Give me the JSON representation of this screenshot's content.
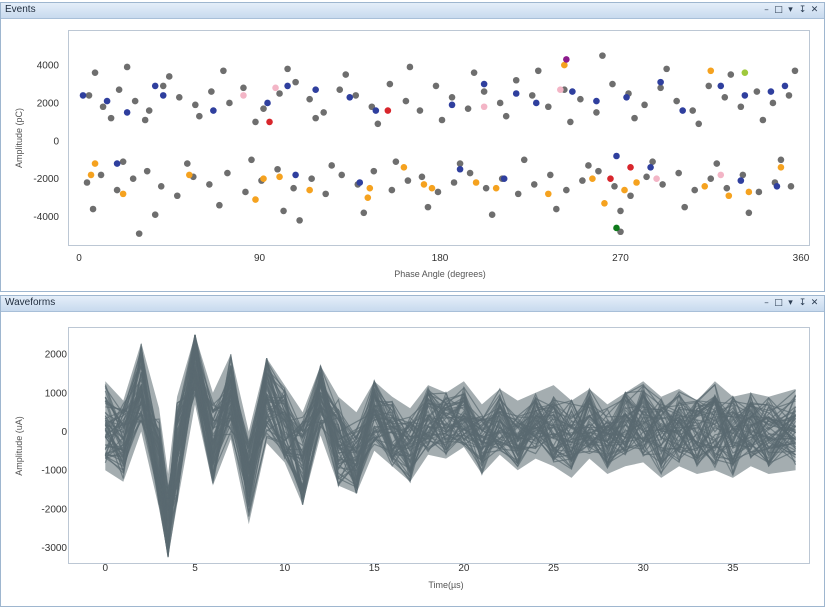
{
  "panels": {
    "events": {
      "title": "Events",
      "controls": [
        "–",
        "□",
        "▾",
        "↧",
        "✕"
      ]
    },
    "waveforms": {
      "title": "Waveforms",
      "controls": [
        "–",
        "□",
        "▾",
        "↧",
        "✕"
      ]
    }
  },
  "chart_data": [
    {
      "type": "scatter",
      "xlabel": "Phase Angle (degrees)",
      "ylabel": "Amplitude (pC)",
      "xlim": [
        0,
        360
      ],
      "ylim": [
        -5500,
        5800
      ],
      "xticks": [
        "0",
        "90",
        "180",
        "270",
        "360"
      ],
      "xtick_values": [
        0,
        90,
        180,
        270,
        360
      ],
      "yticks": [
        "4000",
        "2000",
        "0",
        "-2000",
        "-4000"
      ],
      "ytick_values": [
        4000,
        2000,
        0,
        -2000,
        -4000
      ],
      "grid": false,
      "colors": {
        "default": "#6e6e6e",
        "blue": "#2f3f9e",
        "orange": "#f5a21f",
        "pink": "#f3b5c6",
        "red": "#d8262c",
        "purple": "#8c1a8c",
        "green": "#0e7a1a",
        "lime": "#9fc93c"
      },
      "series": [
        {
          "color": "#6e6e6e",
          "x": [
            5,
            12,
            20,
            28,
            35,
            42,
            50,
            58,
            66,
            75,
            82,
            92,
            100,
            108,
            115,
            122,
            130,
            138,
            146,
            155,
            163,
            170,
            178,
            186,
            194,
            202,
            210,
            218,
            226,
            234,
            242,
            250,
            258,
            266,
            274,
            282,
            290,
            298,
            306,
            314,
            322,
            330,
            338,
            346,
            354,
            8,
            16,
            24,
            33,
            45,
            60,
            72,
            88,
            104,
            118,
            133,
            149,
            165,
            181,
            197,
            213,
            229,
            245,
            261,
            277,
            293,
            309,
            325,
            341,
            357
          ],
          "y": [
            2400,
            1800,
            2700,
            2100,
            1600,
            2900,
            2300,
            1900,
            2600,
            2000,
            2800,
            1700,
            2500,
            3100,
            2200,
            1500,
            2700,
            2400,
            1800,
            3000,
            2100,
            1600,
            2900,
            2300,
            1700,
            2600,
            2000,
            3200,
            2400,
            1800,
            2700,
            2200,
            1500,
            3000,
            2500,
            1900,
            2800,
            2100,
            1600,
            2900,
            2300,
            1800,
            2600,
            2000,
            2400,
            3600,
            1200,
            3900,
            1100,
            3400,
            1300,
            3700,
            1000,
            3800,
            1200,
            3500,
            900,
            3900,
            1100,
            3600,
            1300,
            3700,
            1000,
            4500,
            1200,
            3800,
            900,
            3500,
            1100,
            3700
          ]
        },
        {
          "color": "#6e6e6e",
          "x": [
            4,
            11,
            19,
            27,
            34,
            41,
            49,
            57,
            65,
            74,
            83,
            91,
            99,
            107,
            116,
            123,
            131,
            139,
            147,
            156,
            164,
            171,
            179,
            187,
            195,
            203,
            211,
            219,
            227,
            235,
            243,
            251,
            259,
            267,
            275,
            283,
            291,
            299,
            307,
            315,
            323,
            331,
            339,
            347,
            355,
            7,
            22,
            38,
            54,
            70,
            86,
            102,
            126,
            142,
            158,
            174,
            190,
            206,
            222,
            238,
            254,
            270,
            286,
            302,
            318,
            334,
            350,
            30,
            110,
            270
          ],
          "y": [
            -2200,
            -1800,
            -2600,
            -2000,
            -1600,
            -2400,
            -2900,
            -1900,
            -2300,
            -1700,
            -2700,
            -2100,
            -1500,
            -2500,
            -2000,
            -2800,
            -1800,
            -2300,
            -1600,
            -2600,
            -2100,
            -1900,
            -2700,
            -2200,
            -1700,
            -2500,
            -2000,
            -2800,
            -2300,
            -1800,
            -2600,
            -2100,
            -1600,
            -2400,
            -2900,
            -1900,
            -2300,
            -1700,
            -2600,
            -2000,
            -2500,
            -1800,
            -2700,
            -2200,
            -2400,
            -3600,
            -1100,
            -3900,
            -1200,
            -3400,
            -1000,
            -3700,
            -1300,
            -3800,
            -1100,
            -3500,
            -1200,
            -3900,
            -1000,
            -3600,
            -1300,
            -3700,
            -1100,
            -3500,
            -1200,
            -3800,
            -1000,
            -4900,
            -4200,
            -4800
          ]
        },
        {
          "color": "#2f3f9e",
          "x": [
            2,
            14,
            24,
            38,
            42,
            67,
            94,
            104,
            118,
            135,
            148,
            186,
            202,
            218,
            228,
            246,
            258,
            273,
            290,
            301,
            320,
            332,
            345,
            352,
            19,
            108,
            140,
            190,
            212,
            268,
            285,
            330,
            348
          ],
          "y": [
            2400,
            2100,
            1500,
            2900,
            2400,
            1600,
            2000,
            2900,
            2700,
            2300,
            1600,
            1900,
            3000,
            2500,
            2000,
            2600,
            2100,
            2300,
            3100,
            1600,
            2900,
            2400,
            2600,
            2900,
            -1200,
            -1800,
            -2200,
            -1500,
            -2000,
            -800,
            -1400,
            -2100,
            -2400
          ]
        },
        {
          "color": "#f5a21f",
          "x": [
            8,
            22,
            55,
            92,
            115,
            145,
            162,
            176,
            198,
            234,
            262,
            278,
            312,
            334,
            350,
            6,
            88,
            100,
            144,
            172,
            208,
            256,
            272,
            324,
            242,
            315
          ],
          "y": [
            -1200,
            -2800,
            -1800,
            -2000,
            -2600,
            -2500,
            -1400,
            -2500,
            -2200,
            -2800,
            -3300,
            -2200,
            -2400,
            -2700,
            -1400,
            -1800,
            -3100,
            -1900,
            -3000,
            -2300,
            -2500,
            -2000,
            -2600,
            -2900,
            4000,
            3700
          ]
        },
        {
          "color": "#f3b5c6",
          "x": [
            82,
            98,
            202,
            240,
            288,
            320
          ],
          "y": [
            2400,
            2800,
            1800,
            2700,
            -2000,
            -1800
          ]
        },
        {
          "color": "#d8262c",
          "x": [
            95,
            154,
            275,
            265
          ],
          "y": [
            1000,
            1600,
            -1400,
            -2000
          ]
        },
        {
          "color": "#8c1a8c",
          "x": [
            243
          ],
          "y": [
            4300
          ]
        },
        {
          "color": "#0e7a1a",
          "x": [
            268
          ],
          "y": [
            -4600
          ]
        },
        {
          "color": "#9fc93c",
          "x": [
            332
          ],
          "y": [
            3600
          ]
        }
      ]
    },
    {
      "type": "line",
      "xlabel": "Time(µs)",
      "ylabel": "Amplitude (uA)",
      "xlim": [
        -0.8,
        38.8
      ],
      "ylim": [
        -3350,
        2600
      ],
      "xticks": [
        "0",
        "5",
        "10",
        "15",
        "20",
        "25",
        "30",
        "35"
      ],
      "xtick_values": [
        0,
        5,
        10,
        15,
        20,
        25,
        30,
        35
      ],
      "yticks": [
        "2000",
        "1000",
        "0",
        "-1000",
        "-2000",
        "-3000"
      ],
      "ytick_values": [
        2000,
        1000,
        0,
        -1000,
        -2000,
        -3000
      ],
      "grid": false,
      "series_color": "#5a6a70",
      "envelope": {
        "x": [
          0,
          1,
          2,
          3,
          3.5,
          4,
          5,
          6,
          7,
          8,
          9,
          10,
          11,
          12,
          13,
          14,
          15,
          16,
          17,
          18,
          19,
          20,
          21,
          22,
          23,
          24,
          25,
          26,
          27,
          28,
          29,
          30,
          31,
          32,
          33,
          34,
          35,
          36,
          37,
          38.5
        ],
        "center": [
          200,
          -200,
          1200,
          -800,
          -2400,
          -600,
          1800,
          -300,
          1000,
          -1200,
          900,
          200,
          -800,
          900,
          -300,
          -700,
          500,
          0,
          -500,
          300,
          200,
          400,
          -300,
          300,
          -200,
          200,
          100,
          -100,
          300,
          -200,
          200,
          300,
          -100,
          200,
          0,
          200,
          -100,
          100,
          0,
          100
        ],
        "upper": [
          1300,
          800,
          2300,
          600,
          -1100,
          900,
          2500,
          1000,
          2000,
          0,
          1900,
          1200,
          500,
          1700,
          900,
          500,
          1300,
          900,
          600,
          1200,
          1000,
          1300,
          700,
          1100,
          800,
          1000,
          1200,
          800,
          1100,
          700,
          1000,
          1300,
          900,
          1100,
          800,
          1300,
          900,
          1000,
          900,
          1100
        ],
        "lower": [
          -1000,
          -1300,
          0,
          -2000,
          -3250,
          -1900,
          700,
          -1400,
          -200,
          -2400,
          -300,
          -800,
          -1900,
          -100,
          -1400,
          -1600,
          -500,
          -900,
          -1300,
          -600,
          -700,
          -400,
          -1100,
          -600,
          -1000,
          -700,
          -900,
          -1200,
          -700,
          -1100,
          -900,
          -800,
          -1200,
          -900,
          -1100,
          -1000,
          -1200,
          -900,
          -1100,
          -1000
        ]
      },
      "trace_count": 60
    }
  ]
}
